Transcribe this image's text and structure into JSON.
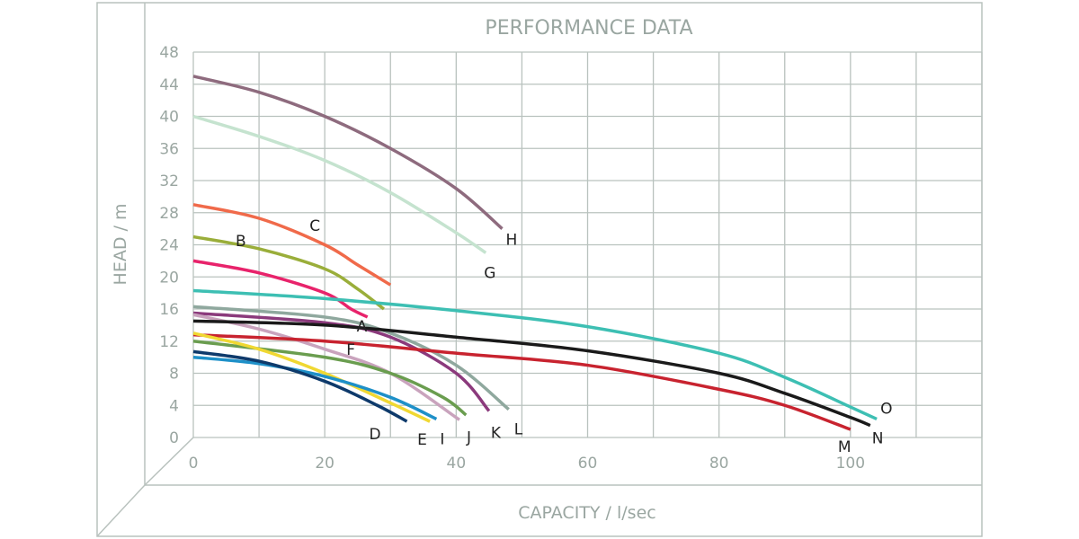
{
  "chart_data": {
    "type": "line",
    "title": "PERFORMANCE DATA",
    "xlabel": "CAPACITY / l/sec",
    "ylabel": "HEAD / m",
    "xlim": [
      0,
      120
    ],
    "ylim": [
      0,
      48
    ],
    "x_ticks": [
      0,
      20,
      40,
      60,
      80,
      100
    ],
    "y_ticks": [
      0,
      4,
      8,
      12,
      16,
      20,
      24,
      28,
      32,
      36,
      40,
      44,
      48
    ],
    "grid": true,
    "series": [
      {
        "name": "H",
        "color": "#8e6b7e",
        "points": [
          [
            0,
            45
          ],
          [
            10,
            43
          ],
          [
            20,
            40
          ],
          [
            30,
            36
          ],
          [
            40,
            31
          ],
          [
            47,
            26
          ]
        ]
      },
      {
        "name": "G",
        "color": "#c5e3cf",
        "points": [
          [
            0,
            40
          ],
          [
            10,
            37.5
          ],
          [
            20,
            34.5
          ],
          [
            30,
            30.5
          ],
          [
            40,
            25.5
          ],
          [
            44.5,
            23
          ]
        ]
      },
      {
        "name": "C",
        "color": "#f06a4a",
        "points": [
          [
            0,
            29
          ],
          [
            10,
            27.3
          ],
          [
            20,
            24
          ],
          [
            25,
            21.5
          ],
          [
            30,
            19
          ]
        ]
      },
      {
        "name": "B",
        "color": "#9aae3a",
        "points": [
          [
            0,
            25
          ],
          [
            10,
            23.5
          ],
          [
            20,
            21
          ],
          [
            25,
            18.5
          ],
          [
            29,
            16
          ]
        ]
      },
      {
        "name": "A",
        "color": "#e8236b",
        "points": [
          [
            0,
            22
          ],
          [
            10,
            20.5
          ],
          [
            20,
            18
          ],
          [
            24,
            16
          ],
          [
            26.5,
            15
          ]
        ]
      },
      {
        "name": "O",
        "color": "#3dbfb3",
        "points": [
          [
            0,
            18.3
          ],
          [
            20,
            17.3
          ],
          [
            40,
            15.8
          ],
          [
            60,
            13.8
          ],
          [
            80,
            10.5
          ],
          [
            90,
            7.5
          ],
          [
            100,
            3.8
          ],
          [
            104,
            2.3
          ]
        ]
      },
      {
        "name": "L",
        "color": "#8fa89e",
        "points": [
          [
            0,
            16.3
          ],
          [
            20,
            15
          ],
          [
            30,
            13
          ],
          [
            40,
            9
          ],
          [
            48,
            3.5
          ]
        ]
      },
      {
        "name": "K",
        "color": "#8b3a7c",
        "points": [
          [
            0,
            15.5
          ],
          [
            20,
            14.3
          ],
          [
            30,
            12.5
          ],
          [
            40,
            8
          ],
          [
            45,
            3.3
          ]
        ]
      },
      {
        "name": "J",
        "color": "#c9a3bd",
        "points": [
          [
            0,
            15.3
          ],
          [
            10,
            13.5
          ],
          [
            20,
            11
          ],
          [
            30,
            8
          ],
          [
            40.5,
            2.2
          ]
        ]
      },
      {
        "name": "N",
        "color": "#1a1a1a",
        "points": [
          [
            0,
            14.5
          ],
          [
            20,
            14
          ],
          [
            40,
            12.5
          ],
          [
            60,
            10.8
          ],
          [
            80,
            8
          ],
          [
            90,
            5.5
          ],
          [
            100,
            2.5
          ],
          [
            103,
            1.5
          ]
        ]
      },
      {
        "name": "M",
        "color": "#c8232f",
        "points": [
          [
            0,
            12.8
          ],
          [
            20,
            12
          ],
          [
            40,
            10.5
          ],
          [
            60,
            9
          ],
          [
            80,
            6
          ],
          [
            90,
            4
          ],
          [
            100,
            1
          ]
        ]
      },
      {
        "name": "F",
        "color": "#6a9d4f",
        "points": [
          [
            0,
            12
          ],
          [
            20,
            10
          ],
          [
            30,
            8
          ],
          [
            38,
            5
          ],
          [
            41.5,
            2.8
          ]
        ]
      },
      {
        "name": "E",
        "color": "#f0d832",
        "points": [
          [
            0,
            13
          ],
          [
            10,
            11
          ],
          [
            20,
            8
          ],
          [
            30,
            4.3
          ],
          [
            36,
            2
          ]
        ]
      },
      {
        "name": "I",
        "color": "#1e90c8",
        "points": [
          [
            0,
            10
          ],
          [
            10,
            9.2
          ],
          [
            20,
            7.6
          ],
          [
            30,
            5
          ],
          [
            37,
            2.3
          ]
        ]
      },
      {
        "name": "D",
        "color": "#0e3a6b",
        "points": [
          [
            0,
            10.7
          ],
          [
            10,
            9.5
          ],
          [
            20,
            7
          ],
          [
            28,
            4
          ],
          [
            32.5,
            2
          ]
        ]
      }
    ]
  }
}
